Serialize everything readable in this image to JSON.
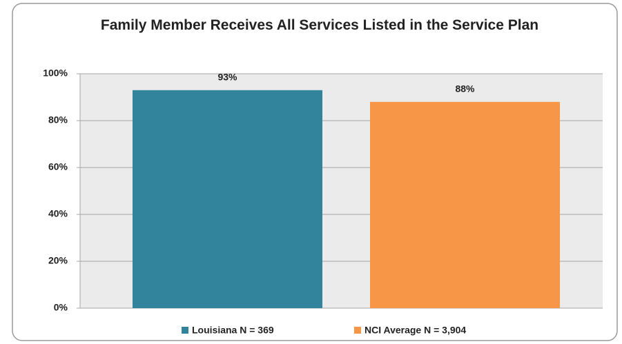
{
  "chart_data": {
    "type": "bar",
    "title": "Family Member Receives All Services Listed in the Service Plan",
    "categories": [
      null
    ],
    "series": [
      {
        "name": "Louisiana N = 369",
        "color": "#31849b",
        "values": [
          93
        ],
        "value_labels": [
          "93%"
        ]
      },
      {
        "name": "NCI Average N = 3,904",
        "color": "#f79646",
        "values": [
          88
        ],
        "value_labels": [
          "88%"
        ]
      }
    ],
    "ylim": [
      0,
      100
    ],
    "yticks": [
      {
        "value": 0,
        "label": "0%"
      },
      {
        "value": 20,
        "label": "20%"
      },
      {
        "value": 40,
        "label": "40%"
      },
      {
        "value": 60,
        "label": "60%"
      },
      {
        "value": 80,
        "label": "80%"
      },
      {
        "value": 100,
        "label": "100%"
      }
    ],
    "grid": true,
    "legend": "bottom"
  }
}
